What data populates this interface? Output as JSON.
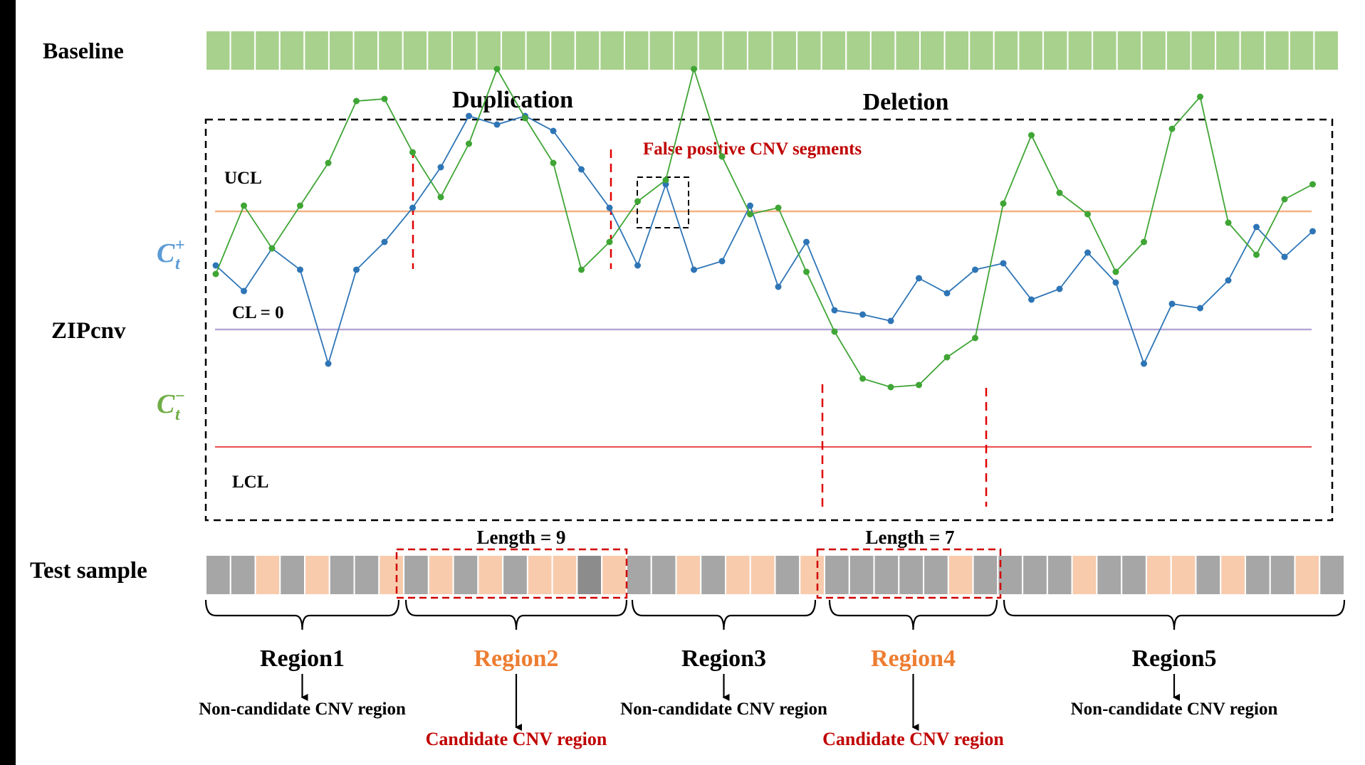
{
  "labels": {
    "baseline": "Baseline",
    "zipcnv": "ZIPcnv",
    "test_sample": "Test sample",
    "duplication": "Duplication",
    "deletion": "Deletion",
    "false_positive": "False positive CNV segments",
    "ucl": "UCL",
    "cl": "CL = 0",
    "lcl": "LCL",
    "c_plus_base": "C",
    "c_plus_sub": "t",
    "c_plus_sup": "+",
    "c_minus_base": "C",
    "c_minus_sub": "t",
    "c_minus_sup": "−",
    "length_dup": "Length = 9",
    "length_del": "Length = 7"
  },
  "colors": {
    "baseline_fill": "#a9d18e",
    "gray_cell": "#a6a6a6",
    "dark_gray_cell": "#8c8c8c",
    "peach_cell": "#f8cbad",
    "c_plus": "#2e75b6",
    "c_plus_label": "#5b9bd5",
    "c_minus": "#3fa535",
    "c_minus_label": "#70ad47",
    "ucl_line": "#f4b183",
    "cl_line": "#b4a7d6",
    "lcl_line": "#ea4b4b",
    "red_text": "#c00000",
    "orange_text": "#ed7d31"
  },
  "baseline_cell_count": 46,
  "test_sample_cells": [
    "g",
    "g",
    "p",
    "g",
    "p",
    "g",
    "g",
    "p",
    "g",
    "p",
    "g",
    "p",
    "g",
    "p",
    "p",
    "d",
    "p",
    "g",
    "g",
    "p",
    "g",
    "p",
    "p",
    "g",
    "p",
    "g",
    "g",
    "g",
    "g",
    "g",
    "p",
    "g",
    "g",
    "g",
    "g",
    "p",
    "g",
    "g",
    "p",
    "p",
    "g",
    "p",
    "g",
    "g",
    "p",
    "g"
  ],
  "c_plus_values": [
    1.5,
    0.9,
    1.9,
    1.4,
    -0.8,
    1.4,
    2.05,
    2.85,
    3.8,
    5.0,
    4.8,
    5.0,
    4.65,
    3.75,
    2.85,
    1.5,
    3.4,
    1.4,
    1.6,
    2.9,
    1.0,
    2.05,
    0.45,
    0.35,
    0.2,
    1.2,
    0.85,
    1.4,
    1.55,
    0.7,
    0.95,
    1.8,
    1.1,
    -0.8,
    0.6,
    0.5,
    1.15,
    2.4,
    1.7,
    2.3
  ],
  "c_minus_values": [
    1.3,
    2.9,
    1.9,
    2.9,
    3.9,
    5.35,
    5.4,
    4.15,
    3.1,
    4.35,
    6.1,
    4.95,
    3.9,
    1.4,
    2.05,
    3.0,
    3.5,
    6.1,
    4.05,
    2.7,
    2.85,
    1.35,
    -0.05,
    -1.15,
    -1.35,
    -1.3,
    -0.65,
    -0.2,
    2.95,
    4.55,
    3.2,
    2.7,
    1.35,
    2.05,
    4.7,
    5.45,
    2.5,
    1.75,
    3.05,
    3.4
  ],
  "regions": [
    {
      "name": "Region1",
      "status": "Non-candidate CNV region",
      "candidate": false
    },
    {
      "name": "Region2",
      "status": "Candidate CNV region",
      "candidate": true
    },
    {
      "name": "Region3",
      "status": "Non-candidate CNV region",
      "candidate": false
    },
    {
      "name": "Region4",
      "status": "Candidate CNV region",
      "candidate": true
    },
    {
      "name": "Region5",
      "status": "Non-candidate CNV region",
      "candidate": false
    }
  ]
}
